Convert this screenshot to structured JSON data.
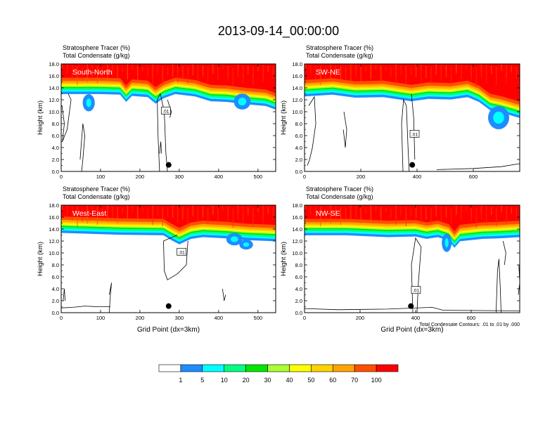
{
  "title": "2013-09-14_00:00:00",
  "colors": {
    "bands": [
      "#ffffff",
      "#1e8cff",
      "#00ffff",
      "#00ff80",
      "#00e600",
      "#aaff33",
      "#ffff00",
      "#ffd200",
      "#ffa500",
      "#ff5000",
      "#ff0000"
    ],
    "contour": "#000000",
    "text_light": "#ffffff"
  },
  "colorbar": {
    "labels": [
      "1",
      "5",
      "10",
      "20",
      "30",
      "40",
      "50",
      "60",
      "70",
      "100"
    ]
  },
  "chart_data": [
    {
      "type": "heatmap",
      "name": "panel-south-north",
      "heading_line1": "Stratosphere Tracer   (%)",
      "heading_line2": "Total Condensate   (g/kg)",
      "label": "South-North",
      "ylabel": "Height (km)",
      "xlabel": "",
      "xlim": [
        0,
        545
      ],
      "ylim": [
        0,
        18
      ],
      "xticks": [
        0,
        100,
        200,
        300,
        400,
        500
      ],
      "yticks": [
        "0.0",
        "2.0",
        "4.0",
        "6.0",
        "8.0",
        "10.0",
        "12.0",
        "14.0",
        "16.0",
        "18.0"
      ],
      "tropopause_km": [
        [
          0,
          14.3
        ],
        [
          100,
          14.3
        ],
        [
          150,
          14.2
        ],
        [
          165,
          13.0
        ],
        [
          180,
          14.0
        ],
        [
          220,
          13.8
        ],
        [
          240,
          12.7
        ],
        [
          260,
          13.6
        ],
        [
          290,
          14.3
        ],
        [
          340,
          13.9
        ],
        [
          380,
          13.1
        ],
        [
          420,
          13.0
        ],
        [
          470,
          12.6
        ],
        [
          520,
          12.3
        ],
        [
          545,
          11.7
        ]
      ],
      "blobs": [
        {
          "x": 70,
          "y": 11.5,
          "rx": 10,
          "ry": 1.2
        },
        {
          "x": 460,
          "y": 11.7,
          "rx": 16,
          "ry": 1.1
        }
      ],
      "cond_lines": [
        [
          [
            2,
            11
          ],
          [
            8,
            8
          ],
          [
            3,
            5
          ],
          [
            15,
            7
          ],
          [
            25,
            12
          ],
          [
            18,
            13
          ]
        ],
        [
          [
            52,
            0
          ],
          [
            55,
            2
          ],
          [
            60,
            6
          ],
          [
            55,
            8
          ],
          [
            48,
            2
          ]
        ],
        [
          [
            250,
            0
          ],
          [
            246,
            6
          ],
          [
            244,
            12
          ],
          [
            252,
            13
          ],
          [
            262,
            10
          ],
          [
            266,
            3
          ],
          [
            270,
            0
          ]
        ],
        [
          [
            250,
            3
          ],
          [
            253,
            5
          ],
          [
            255,
            3
          ]
        ],
        [
          [
            270,
            12
          ],
          [
            280,
            10
          ],
          [
            276,
            9
          ]
        ]
      ],
      "cond_label_pos": [
        265,
        10.2
      ],
      "cond_label": ".01",
      "dot": [
        273,
        1.1
      ]
    },
    {
      "type": "heatmap",
      "name": "panel-sw-ne",
      "heading_line1": "Stratosphere Tracer   (%)",
      "heading_line2": "Total Condensate   (g/kg)",
      "label": "SW-NE",
      "ylabel": "Height (km)",
      "xlabel": "",
      "xlim": [
        0,
        765
      ],
      "ylim": [
        0,
        18
      ],
      "xticks": [
        0,
        200,
        400,
        600
      ],
      "yticks": [
        "0.0",
        "2.0",
        "4.0",
        "6.0",
        "8.0",
        "10.0",
        "12.0",
        "14.0",
        "16.0",
        "18.0"
      ],
      "tropopause_km": [
        [
          0,
          13.9
        ],
        [
          100,
          14.2
        ],
        [
          180,
          13.7
        ],
        [
          280,
          13.8
        ],
        [
          380,
          13.1
        ],
        [
          440,
          13.5
        ],
        [
          520,
          13.4
        ],
        [
          580,
          13.8
        ],
        [
          620,
          13.0
        ],
        [
          660,
          11.6
        ],
        [
          700,
          11.2
        ],
        [
          765,
          10.3
        ]
      ],
      "blobs": [
        {
          "x": 690,
          "y": 9.0,
          "rx": 30,
          "ry": 1.7
        }
      ],
      "cond_lines": [
        [
          [
            15,
            11
          ],
          [
            35,
            12.5
          ],
          [
            40,
            8
          ],
          [
            28,
            4
          ],
          [
            18,
            2
          ],
          [
            10,
            1
          ]
        ],
        [
          [
            140,
            10
          ],
          [
            150,
            7
          ],
          [
            145,
            4
          ],
          [
            138,
            7
          ]
        ],
        [
          [
            350,
            0
          ],
          [
            345,
            8
          ],
          [
            352,
            12
          ],
          [
            362,
            11
          ],
          [
            368,
            4
          ],
          [
            372,
            0
          ]
        ],
        [
          [
            380,
            13
          ],
          [
            388,
            9
          ],
          [
            392,
            2
          ]
        ],
        [
          [
            470,
            0.3
          ],
          [
            600,
            0.5
          ],
          [
            700,
            0.8
          ],
          [
            765,
            1.3
          ]
        ]
      ],
      "cond_label_pos": [
        390,
        6.3
      ],
      "cond_label": ".01",
      "dot": [
        383,
        1.1
      ]
    },
    {
      "type": "heatmap",
      "name": "panel-west-east",
      "heading_line1": "Stratosphere Tracer   (%)",
      "heading_line2": "Total Condensate   (g/kg)",
      "label": "West-East",
      "ylabel": "Height (km)",
      "xlabel": "Grid Point (dx=3km)",
      "xlim": [
        0,
        545
      ],
      "ylim": [
        0,
        18
      ],
      "xticks": [
        0,
        100,
        200,
        300,
        400,
        500
      ],
      "yticks": [
        "0.0",
        "2.0",
        "4.0",
        "6.0",
        "8.0",
        "10.0",
        "12.0",
        "14.0",
        "16.0",
        "18.0"
      ],
      "tropopause_km": [
        [
          0,
          14.7
        ],
        [
          150,
          14.4
        ],
        [
          260,
          14.3
        ],
        [
          280,
          13.5
        ],
        [
          300,
          12.8
        ],
        [
          330,
          13.7
        ],
        [
          360,
          14.0
        ],
        [
          420,
          13.8
        ],
        [
          470,
          13.5
        ],
        [
          545,
          13.3
        ]
      ],
      "blobs": [
        {
          "x": 440,
          "y": 12.3,
          "rx": 15,
          "ry": 0.8
        },
        {
          "x": 470,
          "y": 11.4,
          "rx": 12,
          "ry": 0.6
        }
      ],
      "cond_lines": [
        [
          [
            295,
            13
          ],
          [
            260,
            12
          ],
          [
            262,
            7
          ],
          [
            270,
            5.5
          ],
          [
            295,
            6.5
          ],
          [
            318,
            8
          ],
          [
            322,
            12
          ]
        ],
        [
          [
            122,
            0
          ],
          [
            125,
            3
          ],
          [
            128,
            5
          ],
          [
            122,
            3
          ]
        ],
        [
          [
            5,
            2
          ],
          [
            8,
            4
          ],
          [
            10,
            2
          ]
        ],
        [
          [
            0,
            0.8
          ],
          [
            30,
            0.9
          ],
          [
            60,
            1.1
          ],
          [
            90,
            1.0
          ],
          [
            125,
            1.0
          ]
        ],
        [
          [
            410,
            4
          ],
          [
            414,
            2
          ],
          [
            418,
            3
          ]
        ]
      ],
      "cond_label_pos": [
        305,
        10.2
      ],
      "cond_label": ".01",
      "dot": [
        273,
        1.1
      ]
    },
    {
      "type": "heatmap",
      "name": "panel-nw-se",
      "heading_line1": "Stratosphere Tracer   (%)",
      "heading_line2": "Total Condensate   (g/kg)",
      "label": "NW-SE",
      "ylabel": "Height (km)",
      "xlabel": "Grid Point (dx=3km)",
      "annotation": "Total Condensate Contours: .01 to .01 by .000",
      "xlim": [
        0,
        775
      ],
      "ylim": [
        0,
        18
      ],
      "xticks": [
        0,
        200,
        400,
        600
      ],
      "yticks": [
        "0.0",
        "2.0",
        "4.0",
        "6.0",
        "8.0",
        "10.0",
        "12.0",
        "14.0",
        "16.0",
        "18.0"
      ],
      "tropopause_km": [
        [
          0,
          14.3
        ],
        [
          150,
          14.3
        ],
        [
          300,
          14.0
        ],
        [
          400,
          14.1
        ],
        [
          440,
          13.7
        ],
        [
          480,
          14.0
        ],
        [
          520,
          13.4
        ],
        [
          540,
          12.2
        ],
        [
          560,
          13.3
        ],
        [
          640,
          13.7
        ],
        [
          700,
          13.8
        ],
        [
          775,
          14.0
        ]
      ],
      "blobs": [
        {
          "x": 512,
          "y": 11.7,
          "rx": 10,
          "ry": 1.3
        }
      ],
      "cond_lines": [
        [
          [
            390,
            0
          ],
          [
            385,
            8
          ],
          [
            400,
            12.5
          ],
          [
            420,
            11
          ],
          [
            410,
            5
          ],
          [
            405,
            0
          ]
        ],
        [
          [
            690,
            0
          ],
          [
            695,
            7
          ],
          [
            700,
            9
          ],
          [
            705,
            4
          ],
          [
            708,
            0
          ]
        ],
        [
          [
            0,
            0.7
          ],
          [
            120,
            0.5
          ],
          [
            300,
            0.6
          ],
          [
            460,
            0.9
          ],
          [
            500,
            0.4
          ],
          [
            775,
            0.3
          ]
        ],
        [
          [
            770,
            3
          ],
          [
            775,
            5
          ],
          [
            772,
            8
          ]
        ],
        [
          [
            715,
            12
          ],
          [
            725,
            10
          ],
          [
            720,
            8
          ]
        ]
      ],
      "cond_label_pos": [
        400,
        3.8
      ],
      "cond_label": ".01",
      "dot": [
        383,
        1.1
      ]
    }
  ]
}
